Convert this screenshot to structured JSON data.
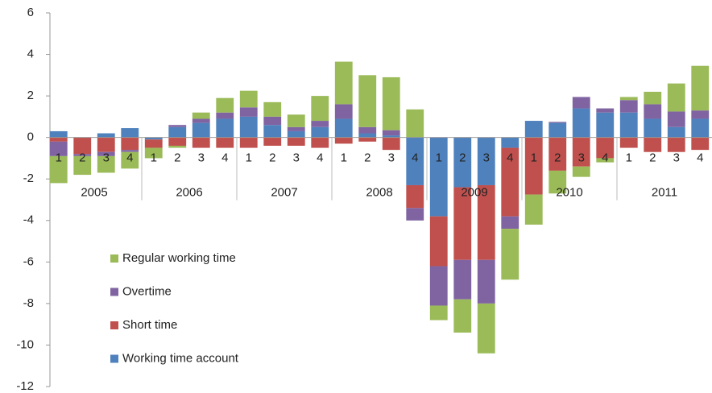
{
  "chart_data": {
    "type": "stacked_bar",
    "categories": [
      "1",
      "2",
      "3",
      "4",
      "1",
      "2",
      "3",
      "4",
      "1",
      "2",
      "3",
      "4",
      "1",
      "2",
      "3",
      "4",
      "1",
      "2",
      "3",
      "4",
      "1",
      "2",
      "3",
      "4",
      "1",
      "2",
      "3",
      "4"
    ],
    "groups": [
      "2005",
      "2006",
      "2007",
      "2008",
      "2009",
      "2010",
      "2011"
    ],
    "series": [
      {
        "name": "Working time account",
        "color": "#4f81bd",
        "values": [
          0.3,
          0,
          0.2,
          0.45,
          -0.1,
          0.5,
          0.7,
          0.9,
          1.0,
          0.6,
          0.3,
          0.5,
          0.9,
          0.2,
          0.1,
          -2.3,
          -3.8,
          -2.4,
          -2.3,
          -0.5,
          0.8,
          0.7,
          1.4,
          1.2,
          1.2,
          0.9,
          0.5,
          0.9
        ]
      },
      {
        "name": "Short time",
        "color": "#c0504d",
        "values": [
          -0.2,
          -0.8,
          -0.7,
          -0.6,
          -0.4,
          -0.4,
          -0.5,
          -0.5,
          -0.5,
          -0.4,
          -0.4,
          -0.5,
          -0.3,
          -0.2,
          -0.6,
          -1.1,
          -2.4,
          -3.5,
          -3.6,
          -3.3,
          -2.75,
          -1.6,
          -1.4,
          -1.0,
          -0.5,
          -0.7,
          -0.7,
          -0.6
        ]
      },
      {
        "name": "Overtime",
        "color": "#8064a2",
        "values": [
          -0.7,
          -0.1,
          -0.2,
          -0.1,
          0,
          0.1,
          0.2,
          0.3,
          0.45,
          0.4,
          0.2,
          0.3,
          0.7,
          0.3,
          0.25,
          -0.6,
          -1.9,
          -1.9,
          -2.1,
          -0.6,
          0,
          0.05,
          0.55,
          0.2,
          0.6,
          0.7,
          0.75,
          0.4
        ]
      },
      {
        "name": "Regular working time",
        "color": "#9bbb59",
        "values": [
          -1.3,
          -0.9,
          -0.8,
          -0.8,
          -0.5,
          -0.1,
          0.3,
          0.7,
          0.8,
          0.7,
          0.6,
          1.2,
          2.05,
          2.5,
          2.55,
          1.35,
          -0.7,
          -1.6,
          -2.4,
          -2.45,
          -1.45,
          -1.1,
          -0.5,
          -0.2,
          0.15,
          0.6,
          1.35,
          2.15
        ]
      }
    ],
    "ylim": [
      -12,
      6
    ],
    "yticks": [
      -12,
      -10,
      -8,
      -6,
      -4,
      -2,
      0,
      2,
      4,
      6
    ]
  }
}
